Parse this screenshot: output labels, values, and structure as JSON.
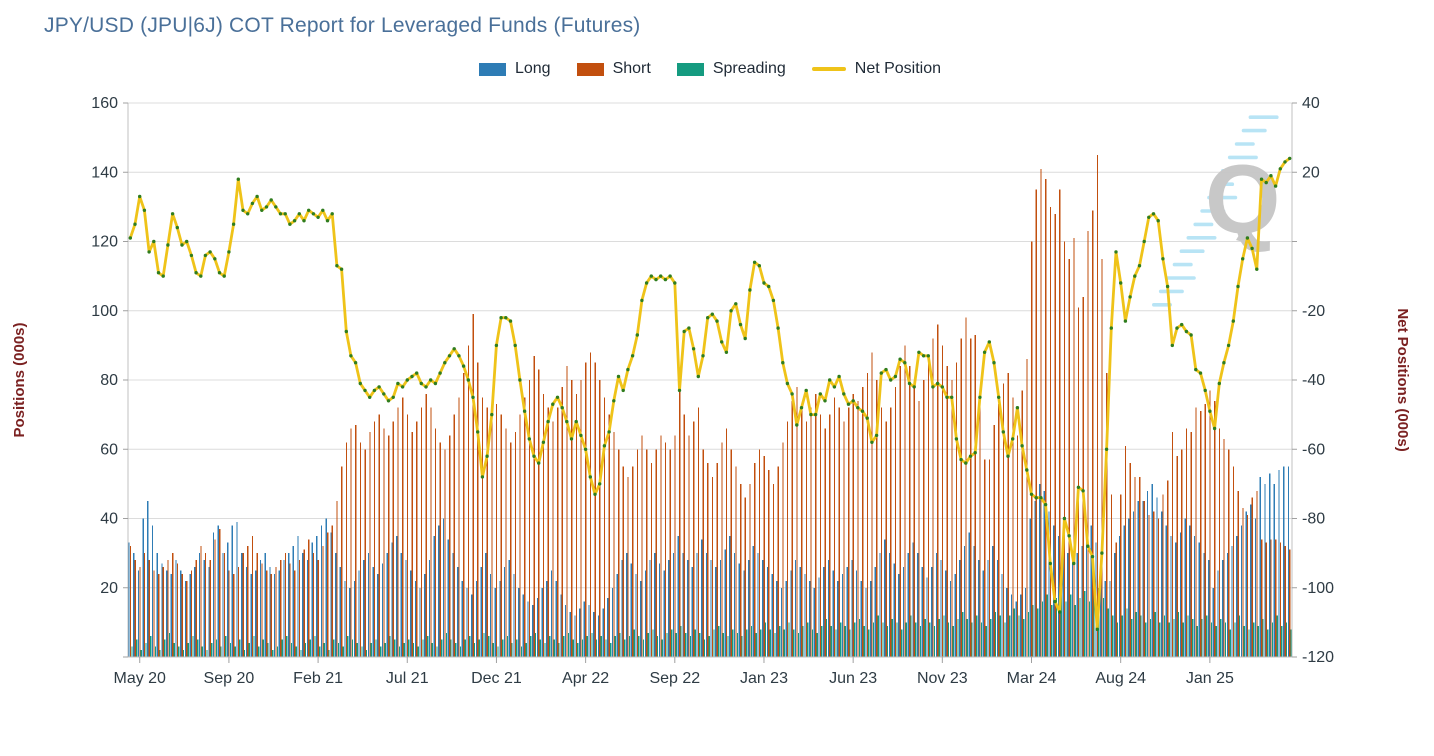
{
  "title": "JPY/USD (JPU|6J) COT Report for Leveraged Funds (Futures)",
  "title_color": "#4a7099",
  "legend": [
    {
      "label": "Long",
      "color": "#2E7CB5",
      "type": "box"
    },
    {
      "label": "Short",
      "color": "#C24F0E",
      "type": "box"
    },
    {
      "label": "Spreading",
      "color": "#159B80",
      "type": "box"
    },
    {
      "label": "Net Position",
      "color": "#EFC319",
      "type": "line"
    }
  ],
  "watermark": {
    "letter": "Q",
    "letter_color": "#c6c6c6",
    "dash_color": "#b5e3f5"
  },
  "chart_data": {
    "type": "bar+line",
    "frequency": "weekly",
    "x_tick_labels": [
      "May 20",
      "Sep 20",
      "Feb 21",
      "Jul 21",
      "Dec 21",
      "Apr 22",
      "Sep 22",
      "Jan 23",
      "Jun 23",
      "Nov 23",
      "Mar 24",
      "Aug 24",
      "Jan 25"
    ],
    "x_tick_indices": [
      2,
      21,
      40,
      59,
      78,
      97,
      116,
      135,
      154,
      173,
      192,
      211,
      230
    ],
    "left_axis": {
      "title": "Positions (000s)",
      "min": 0,
      "max": 160,
      "tick_step": 20,
      "labeled_ticks": [
        20,
        40,
        60,
        80,
        100,
        120,
        140,
        160
      ],
      "title_color": "#7b2121",
      "tick_label_color": "#2e3b44"
    },
    "right_axis": {
      "title": "Net Positions (000s)",
      "min": -120,
      "max": 40,
      "tick_step": 20,
      "labeled_ticks": [
        40,
        20,
        -20,
        -40,
        -60,
        -80,
        -100,
        -120
      ],
      "title_color": "#7b2121",
      "tick_label_color": "#2e3b44"
    },
    "grid": true,
    "legend_position": "top-center",
    "marker_color": "#2f7d1e",
    "series": [
      {
        "name": "Long",
        "axis": "left",
        "kind": "bar",
        "color": "#2E7CB5",
        "values": [
          33,
          30,
          25,
          40,
          45,
          38,
          30,
          27,
          25,
          24,
          28,
          25,
          22,
          24,
          26,
          30,
          28,
          26,
          36,
          38,
          30,
          33,
          38,
          39,
          30,
          26,
          24,
          25,
          28,
          30,
          26,
          24,
          25,
          28,
          30,
          32,
          35,
          30,
          28,
          33,
          35,
          38,
          40,
          36,
          30,
          26,
          22,
          20,
          22,
          25,
          28,
          30,
          26,
          24,
          27,
          30,
          33,
          35,
          30,
          28,
          25,
          22,
          20,
          24,
          28,
          35,
          38,
          40,
          34,
          30,
          26,
          22,
          20,
          18,
          22,
          26,
          30,
          24,
          20,
          22,
          26,
          28,
          24,
          20,
          18,
          16,
          15,
          17,
          20,
          22,
          25,
          22,
          18,
          15,
          13,
          12,
          14,
          16,
          15,
          13,
          12,
          14,
          17,
          20,
          24,
          28,
          30,
          27,
          24,
          22,
          25,
          28,
          30,
          27,
          25,
          28,
          30,
          35,
          30,
          28,
          26,
          30,
          34,
          30,
          28,
          26,
          28,
          31,
          35,
          30,
          27,
          25,
          28,
          32,
          30,
          28,
          26,
          24,
          22,
          20,
          22,
          25,
          28,
          26,
          24,
          22,
          20,
          23,
          26,
          28,
          25,
          22,
          24,
          26,
          28,
          25,
          22,
          20,
          22,
          26,
          30,
          34,
          30,
          27,
          24,
          26,
          30,
          33,
          30,
          26,
          23,
          26,
          30,
          28,
          25,
          22,
          24,
          28,
          32,
          36,
          32,
          28,
          25,
          28,
          32,
          28,
          24,
          20,
          18,
          16,
          18,
          20,
          40,
          45,
          50,
          48,
          42,
          38,
          35,
          32,
          30,
          28,
          30,
          32,
          35,
          38,
          33,
          25,
          22,
          22,
          30,
          35,
          38,
          40,
          42,
          45,
          45,
          48,
          50,
          46,
          42,
          38,
          35,
          33,
          36,
          40,
          38,
          35,
          33,
          30,
          28,
          20,
          25,
          28,
          30,
          32,
          35,
          38,
          42,
          44,
          40,
          52,
          50,
          53,
          50,
          54,
          55,
          55
        ]
      },
      {
        "name": "Short",
        "axis": "left",
        "kind": "bar",
        "color": "#C24F0E",
        "values": [
          32,
          28,
          26,
          30,
          28,
          25,
          24,
          26,
          28,
          30,
          27,
          24,
          22,
          25,
          28,
          32,
          30,
          28,
          34,
          37,
          30,
          25,
          24,
          26,
          30,
          32,
          35,
          30,
          27,
          25,
          24,
          26,
          28,
          30,
          27,
          25,
          28,
          31,
          34,
          30,
          28,
          32,
          36,
          38,
          45,
          55,
          62,
          66,
          67,
          62,
          60,
          65,
          68,
          70,
          66,
          64,
          68,
          72,
          75,
          70,
          65,
          68,
          72,
          76,
          72,
          66,
          62,
          60,
          64,
          70,
          75,
          82,
          90,
          99,
          85,
          75,
          72,
          75,
          73,
          70,
          66,
          62,
          65,
          70,
          75,
          80,
          87,
          83,
          76,
          72,
          68,
          72,
          78,
          84,
          80,
          76,
          80,
          85,
          88,
          85,
          80,
          75,
          70,
          65,
          60,
          55,
          52,
          55,
          60,
          64,
          60,
          56,
          60,
          64,
          62,
          60,
          64,
          80,
          70,
          64,
          68,
          72,
          60,
          56,
          52,
          56,
          62,
          66,
          60,
          55,
          50,
          46,
          50,
          56,
          60,
          58,
          54,
          50,
          55,
          62,
          68,
          74,
          78,
          72,
          68,
          72,
          76,
          70,
          66,
          70,
          75,
          72,
          68,
          72,
          76,
          74,
          78,
          82,
          88,
          80,
          72,
          68,
          72,
          78,
          84,
          90,
          84,
          78,
          74,
          80,
          86,
          92,
          96,
          90,
          84,
          80,
          85,
          92,
          98,
          92,
          93,
          73,
          57,
          57,
          67,
          73,
          79,
          82,
          75,
          64,
          77,
          86,
          120,
          135,
          141,
          138,
          130,
          128,
          135,
          120,
          115,
          121,
          101,
          104,
          123,
          129,
          145,
          115,
          82,
          47,
          33,
          47,
          61,
          56,
          52,
          52,
          45,
          41,
          42,
          40,
          47,
          51,
          65,
          58,
          60,
          66,
          65,
          72,
          71,
          73,
          77,
          74,
          66,
          63,
          60,
          55,
          48,
          43,
          41,
          46,
          48,
          34,
          33,
          34,
          34,
          33,
          32,
          31
        ]
      },
      {
        "name": "Spreading",
        "axis": "left",
        "kind": "bar",
        "color": "#159B80",
        "values": [
          3,
          5,
          2,
          4,
          6,
          3,
          2,
          5,
          7,
          4,
          3,
          2,
          4,
          6,
          5,
          3,
          2,
          4,
          5,
          3,
          6,
          4,
          3,
          5,
          2,
          4,
          6,
          3,
          5,
          4,
          2,
          3,
          5,
          6,
          4,
          3,
          2,
          4,
          5,
          6,
          3,
          4,
          2,
          5,
          4,
          3,
          6,
          5,
          4,
          3,
          2,
          4,
          5,
          3,
          4,
          6,
          5,
          3,
          4,
          5,
          4,
          3,
          5,
          6,
          4,
          3,
          5,
          7,
          5,
          4,
          3,
          5,
          6,
          4,
          5,
          7,
          6,
          4,
          3,
          5,
          6,
          4,
          5,
          3,
          4,
          6,
          7,
          5,
          4,
          6,
          5,
          4,
          6,
          7,
          5,
          4,
          5,
          6,
          7,
          5,
          6,
          5,
          4,
          6,
          7,
          5,
          6,
          8,
          6,
          5,
          7,
          8,
          6,
          5,
          7,
          8,
          7,
          9,
          7,
          6,
          8,
          7,
          5,
          6,
          8,
          9,
          7,
          6,
          8,
          7,
          6,
          8,
          9,
          7,
          8,
          10,
          8,
          7,
          9,
          8,
          10,
          8,
          7,
          9,
          10,
          8,
          7,
          9,
          11,
          9,
          8,
          10,
          9,
          8,
          10,
          11,
          9,
          8,
          10,
          12,
          10,
          9,
          11,
          10,
          8,
          10,
          12,
          10,
          9,
          11,
          10,
          9,
          11,
          12,
          10,
          9,
          11,
          13,
          11,
          10,
          12,
          10,
          9,
          11,
          13,
          12,
          10,
          12,
          14,
          12,
          11,
          13,
          15,
          14,
          16,
          18,
          15,
          17,
          20,
          16,
          18,
          15,
          17,
          19,
          16,
          18,
          20,
          17,
          14,
          12,
          10,
          12,
          14,
          11,
          13,
          12,
          10,
          11,
          13,
          10,
          12,
          10,
          11,
          13,
          10,
          12,
          11,
          9,
          11,
          12,
          10,
          9,
          11,
          10,
          8,
          10,
          12,
          9,
          8,
          10,
          9,
          11,
          8,
          10,
          12,
          9,
          10,
          8
        ]
      },
      {
        "name": "Net Position",
        "axis": "right",
        "kind": "line",
        "color": "#EFC319",
        "values": [
          1,
          5,
          13,
          9,
          -3,
          0,
          -9,
          -10,
          -1,
          8,
          4,
          -1,
          0,
          -4,
          -9,
          -10,
          -4,
          -3,
          -5,
          -9,
          -10,
          -3,
          5,
          18,
          9,
          8,
          11,
          13,
          9,
          10,
          12,
          10,
          8,
          8,
          5,
          6,
          8,
          6,
          9,
          8,
          7,
          9,
          6,
          8,
          -7,
          -8,
          -26,
          -33,
          -35,
          -41,
          -43,
          -45,
          -43,
          -42,
          -44,
          -46,
          -45,
          -41,
          -42,
          -40,
          -39,
          -38,
          -41,
          -42,
          -40,
          -41,
          -38,
          -35,
          -33,
          -31,
          -33,
          -36,
          -40,
          -45,
          -55,
          -68,
          -62,
          -50,
          -30,
          -22,
          -22,
          -23,
          -30,
          -40,
          -49,
          -57,
          -62,
          -64,
          -58,
          -52,
          -47,
          -45,
          -48,
          -52,
          -57,
          -52,
          -56,
          -60,
          -68,
          -73,
          -70,
          -59,
          -55,
          -46,
          -39,
          -43,
          -37,
          -33,
          -27,
          -17,
          -12,
          -10,
          -11,
          -10,
          -11,
          -10,
          -12,
          -43,
          -26,
          -25,
          -31,
          -39,
          -33,
          -22,
          -21,
          -23,
          -29,
          -32,
          -20,
          -18,
          -24,
          -28,
          -14,
          -6,
          -7,
          -12,
          -13,
          -17,
          -25,
          -35,
          -41,
          -44,
          -53,
          -48,
          -43,
          -50,
          -50,
          -44,
          -46,
          -40,
          -42,
          -39,
          -44,
          -47,
          -46,
          -48,
          -49,
          -51,
          -58,
          -56,
          -38,
          -37,
          -40,
          -39,
          -34,
          -35,
          -41,
          -42,
          -32,
          -33,
          -33,
          -42,
          -41,
          -42,
          -45,
          -45,
          -57,
          -63,
          -64,
          -62,
          -61,
          -45,
          -32,
          -29,
          -35,
          -45,
          -55,
          -62,
          -57,
          -48,
          -59,
          -66,
          -73,
          -74,
          -74,
          -76,
          -93,
          -104,
          -107,
          -80,
          -85,
          -93,
          -71,
          -72,
          -88,
          -91,
          -112,
          -90,
          -60,
          -25,
          -3,
          -12,
          -23,
          -16,
          -10,
          -7,
          0,
          7,
          8,
          6,
          -5,
          -13,
          -30,
          -25,
          -24,
          -26,
          -27,
          -37,
          -38,
          -43,
          -49,
          -54,
          -41,
          -35,
          -30,
          -23,
          -13,
          -5,
          1,
          -2,
          -8,
          18,
          17,
          19,
          16,
          21,
          23,
          24
        ]
      }
    ]
  }
}
